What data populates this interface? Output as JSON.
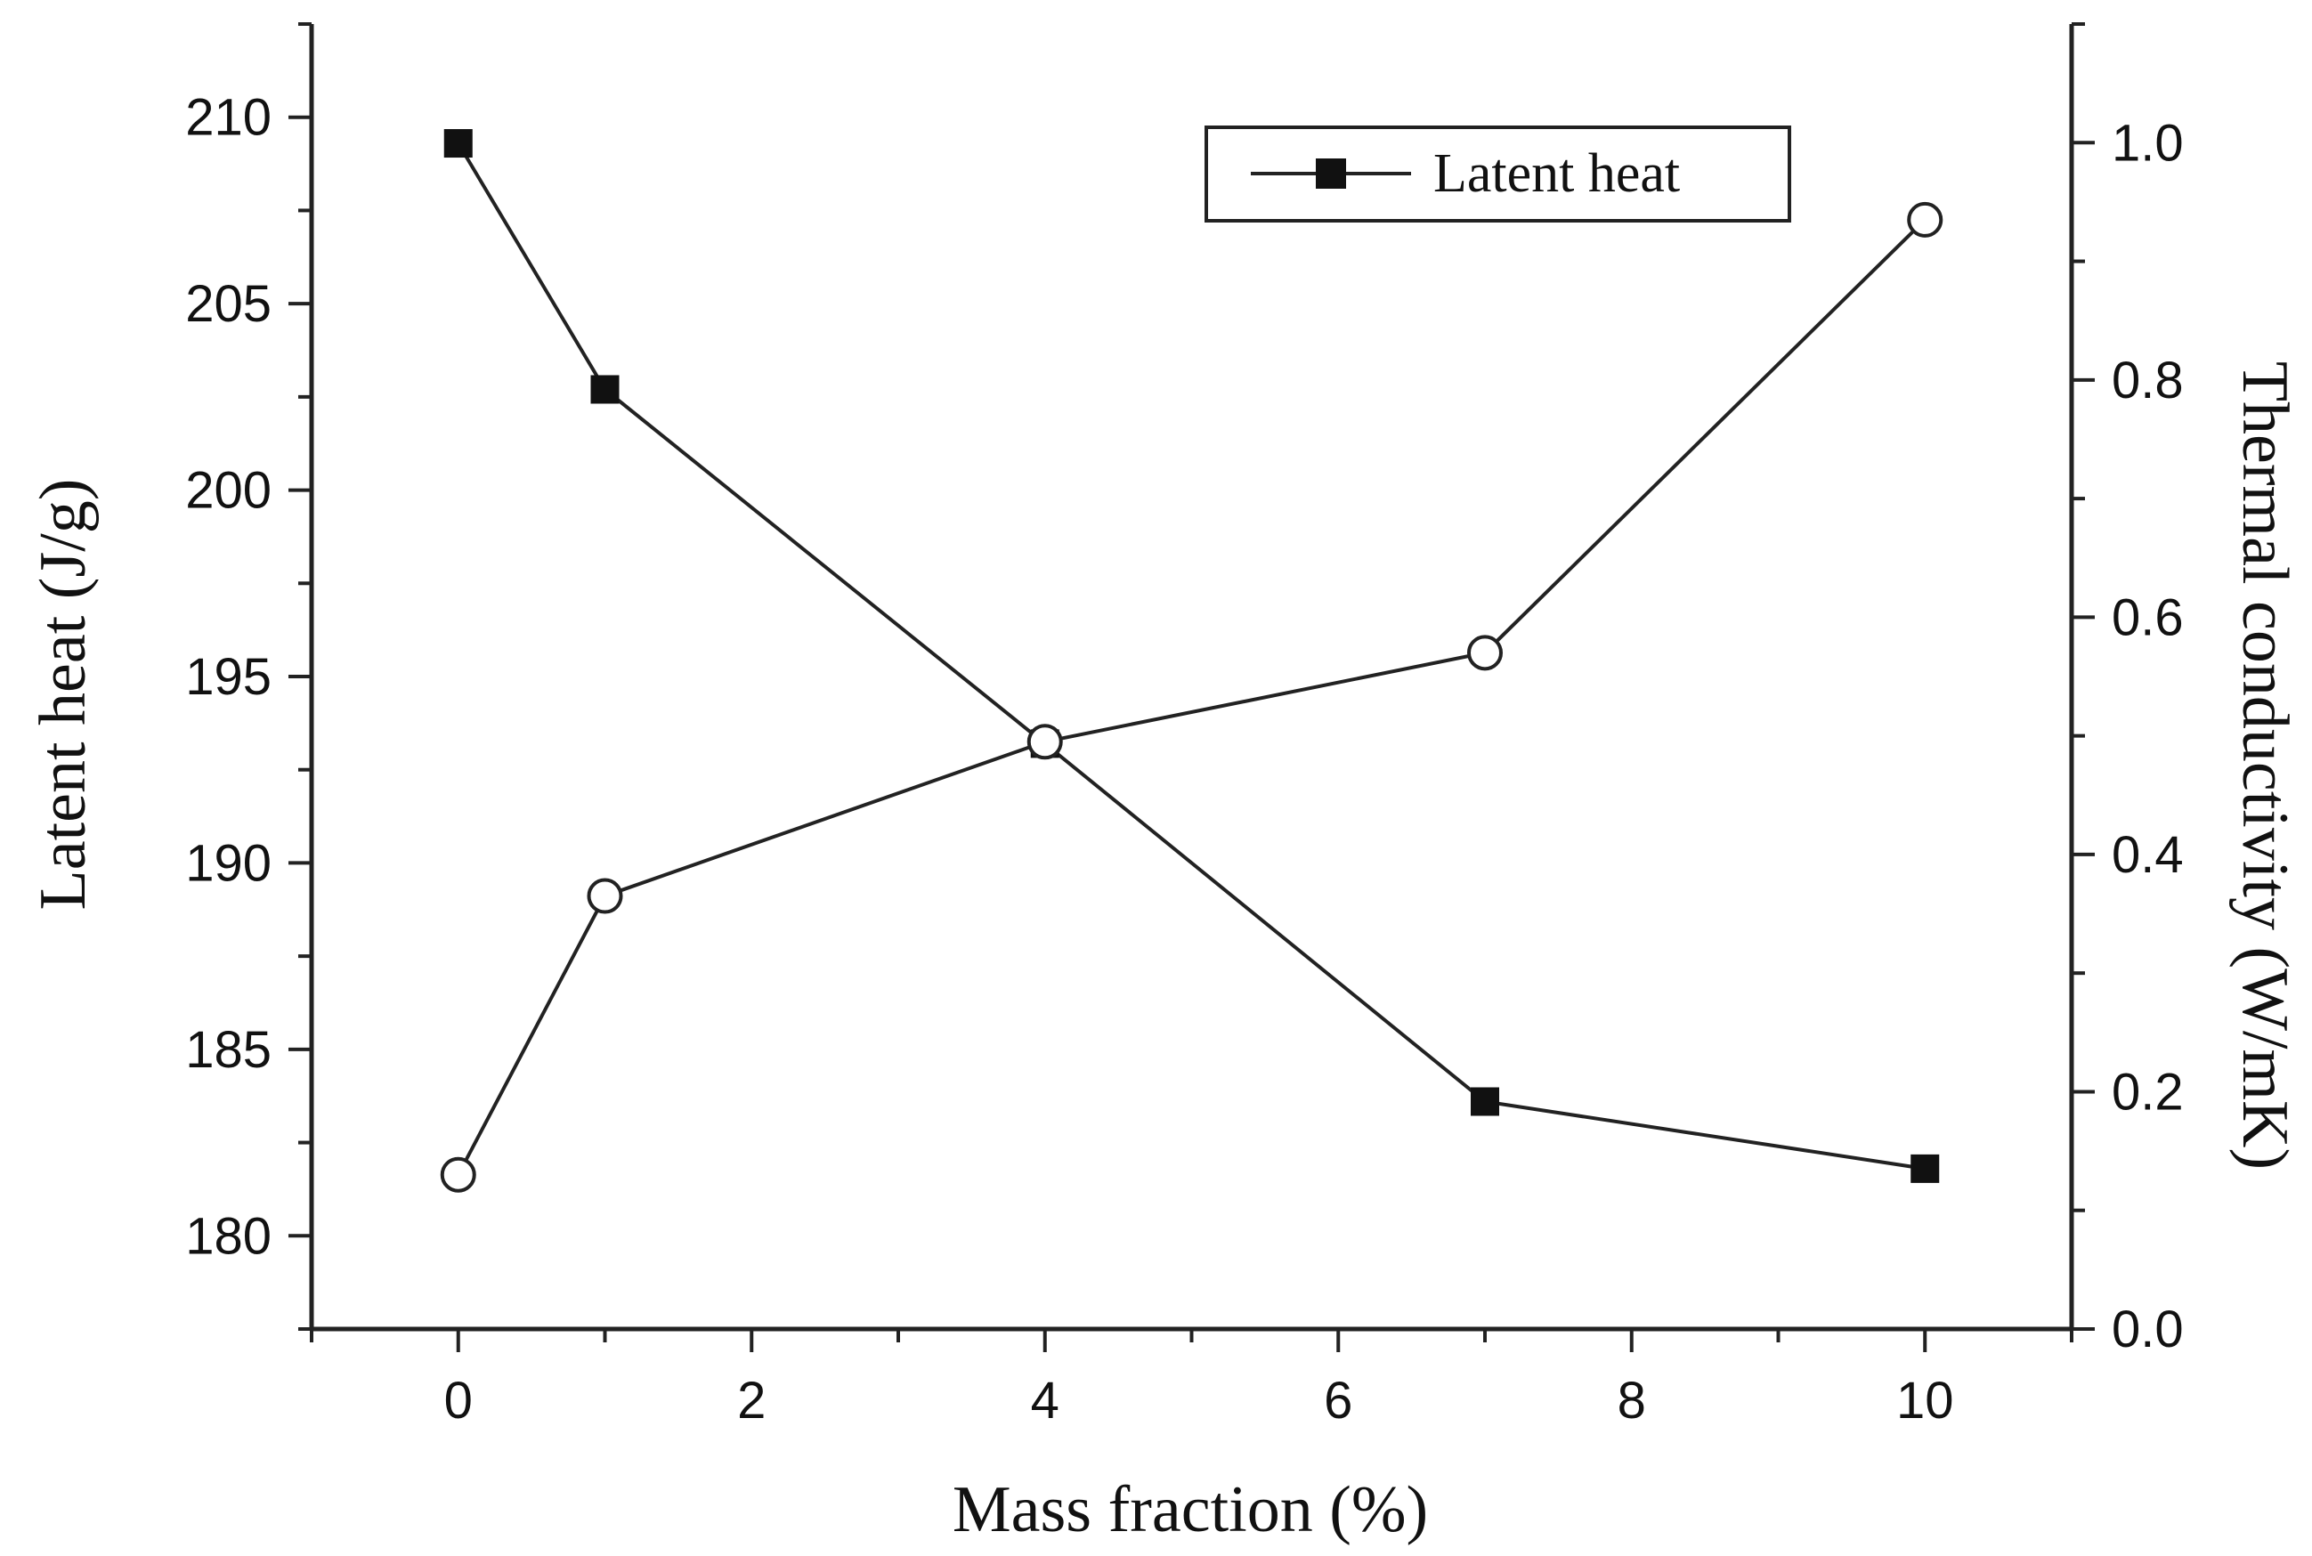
{
  "chart_data": {
    "type": "line",
    "xlabel": "Mass fraction (%)",
    "ylabel": "Latent heat (J/g)",
    "y2label": "Thermal conductivity (W/mK)",
    "xlim": [
      -1,
      11
    ],
    "ylim": [
      177.5,
      212.5
    ],
    "y2lim": [
      0.0,
      1.1
    ],
    "xticks": [
      0,
      2,
      4,
      6,
      8,
      10
    ],
    "yticks": [
      180,
      185,
      190,
      195,
      200,
      205,
      210
    ],
    "y2ticks": [
      "0.0",
      "0.2",
      "0.4",
      "0.6",
      "0.8",
      "1.0"
    ],
    "grid": false,
    "legend": {
      "position": "top-right",
      "entries": [
        "Latent heat"
      ]
    },
    "series": [
      {
        "name": "Latent heat",
        "axis": "left",
        "marker": "filled-square",
        "x": [
          0,
          1,
          4,
          7,
          10
        ],
        "y": [
          209.3,
          202.7,
          193.2,
          183.6,
          181.8
        ]
      },
      {
        "axis": "right",
        "marker": "open-circle",
        "x": [
          0,
          1,
          4,
          7,
          10
        ],
        "y": [
          0.13,
          0.365,
          0.495,
          0.57,
          0.935
        ]
      }
    ]
  }
}
